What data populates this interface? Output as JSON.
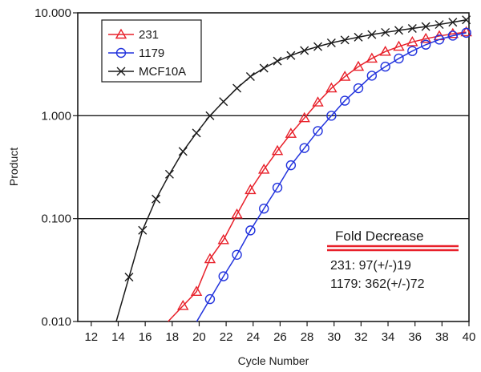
{
  "chart_data": {
    "type": "line",
    "title": "",
    "xlabel": "Cycle Number",
    "ylabel": "Product",
    "x_scale": "linear",
    "y_scale": "log",
    "xlim": [
      11,
      40
    ],
    "ylim": [
      0.01,
      10
    ],
    "x_ticks": [
      12,
      14,
      16,
      18,
      20,
      22,
      24,
      26,
      28,
      30,
      32,
      34,
      36,
      38,
      40
    ],
    "y_ticks": [
      0.01,
      0.1,
      1,
      10
    ],
    "y_tick_labels": [
      "0.010",
      "0.100",
      "1.000",
      "10.000"
    ],
    "grid": "horizontal major lines at 0.1, 1.000",
    "legend_position": "top-left",
    "series": [
      {
        "name": "231",
        "color": "#e8202a",
        "marker": "triangle",
        "x": [
          18.8,
          19.8,
          20.8,
          21.8,
          22.8,
          23.8,
          24.8,
          25.8,
          26.8,
          27.8,
          28.8,
          29.8,
          30.8,
          31.8,
          32.8,
          33.8,
          34.8,
          35.8,
          36.8,
          37.8,
          38.8,
          39.8
        ],
        "y": [
          0.0142,
          0.0195,
          0.0405,
          0.062,
          0.11,
          0.19,
          0.3,
          0.455,
          0.67,
          0.95,
          1.35,
          1.85,
          2.4,
          3.0,
          3.6,
          4.2,
          4.7,
          5.2,
          5.6,
          5.95,
          6.25,
          6.5
        ]
      },
      {
        "name": "1179",
        "color": "#2233dd",
        "marker": "circle",
        "x": [
          20.8,
          21.8,
          22.8,
          23.8,
          24.8,
          25.8,
          26.8,
          27.8,
          28.8,
          29.8,
          30.8,
          31.8,
          32.8,
          33.8,
          34.8,
          35.8,
          36.8,
          37.8,
          38.8,
          39.8
        ],
        "y": [
          0.0165,
          0.0275,
          0.0445,
          0.0768,
          0.125,
          0.2,
          0.33,
          0.485,
          0.71,
          1.0,
          1.4,
          1.85,
          2.45,
          3.0,
          3.6,
          4.25,
          4.9,
          5.5,
          6.0,
          6.4
        ]
      },
      {
        "name": "MCF10A",
        "color": "#1a1a1a",
        "marker": "x",
        "x": [
          14.8,
          15.8,
          16.8,
          17.8,
          18.8,
          19.8,
          20.8,
          21.8,
          22.8,
          23.8,
          24.8,
          25.8,
          26.8,
          27.8,
          28.8,
          29.8,
          30.8,
          31.8,
          32.8,
          33.8,
          34.8,
          35.8,
          36.8,
          37.8,
          38.8,
          39.8
        ],
        "y": [
          0.027,
          0.077,
          0.155,
          0.27,
          0.45,
          0.68,
          1.0,
          1.37,
          1.85,
          2.4,
          2.9,
          3.4,
          3.85,
          4.3,
          4.7,
          5.1,
          5.45,
          5.8,
          6.15,
          6.45,
          6.75,
          7.05,
          7.35,
          7.7,
          8.1,
          8.55
        ]
      }
    ],
    "annotation": {
      "title": "Fold Decrease",
      "lines": [
        "231: 97(+/-)19",
        "1179: 362(+/-)72"
      ],
      "underline_color": "#e8202a"
    }
  }
}
